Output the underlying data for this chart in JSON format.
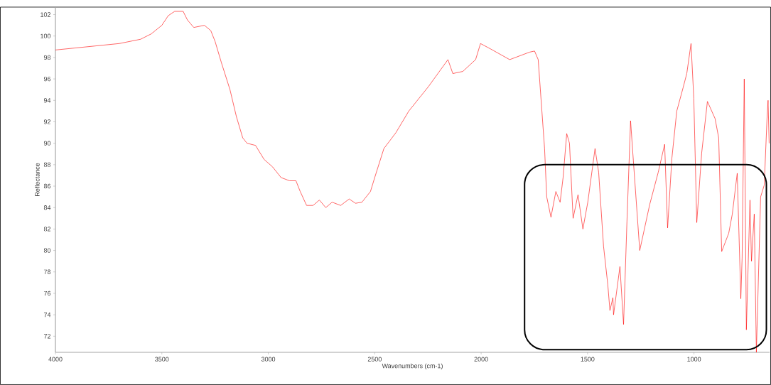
{
  "chart_data": {
    "type": "line",
    "xlabel": "Wavenumbers (cm-1)",
    "ylabel": "Reflectance",
    "xlim": [
      4000,
      645
    ],
    "ylim": [
      70.5,
      102.7
    ],
    "xticks": [
      4000,
      3500,
      3000,
      2500,
      2000,
      1500,
      1000
    ],
    "yticks": [
      72,
      74,
      76,
      78,
      80,
      82,
      84,
      86,
      88,
      90,
      92,
      94,
      96,
      98,
      100,
      102
    ],
    "grid": false,
    "marker": "none",
    "line_style": "solid",
    "series": [
      {
        "color": "#ff0000",
        "x": [
          4000,
          3900,
          3800,
          3700,
          3600,
          3550,
          3500,
          3470,
          3440,
          3400,
          3380,
          3350,
          3300,
          3270,
          3250,
          3220,
          3180,
          3150,
          3120,
          3100,
          3060,
          3020,
          2980,
          2940,
          2900,
          2870,
          2850,
          2820,
          2790,
          2760,
          2730,
          2700,
          2660,
          2620,
          2590,
          2560,
          2520,
          2500,
          2457,
          2400,
          2340,
          2247,
          2156,
          2133,
          2086,
          2026,
          2003,
          1956,
          1866,
          1772,
          1749,
          1732,
          1702,
          1692,
          1672,
          1649,
          1629,
          1615,
          1598,
          1585,
          1568,
          1545,
          1522,
          1499,
          1465,
          1448,
          1425,
          1405,
          1395,
          1381,
          1378,
          1348,
          1331,
          1315,
          1298,
          1285,
          1255,
          1208,
          1168,
          1138,
          1124,
          1104,
          1081,
          1051,
          1034,
          1014,
          1001,
          987,
          964,
          937,
          901,
          884,
          870,
          837,
          820,
          797,
          780,
          774,
          764,
          754,
          737,
          730,
          717,
          707,
          687,
          670,
          657,
          652,
          647
        ],
        "values": [
          98.7,
          98.9,
          99.1,
          99.3,
          99.7,
          100.2,
          101,
          101.9,
          102.3,
          102.3,
          101.5,
          100.8,
          101,
          100.5,
          99.5,
          97.5,
          95,
          92.5,
          90.5,
          90,
          89.8,
          88.5,
          87.8,
          86.8,
          86.5,
          86.5,
          85.5,
          84.2,
          84.2,
          84.7,
          84,
          84.5,
          84.2,
          84.8,
          84.4,
          84.5,
          85.5,
          86.8,
          89.5,
          91,
          93,
          95.3,
          97.8,
          96.5,
          96.7,
          97.8,
          99.3,
          98.8,
          97.8,
          98.5,
          98.6,
          97.8,
          89.5,
          85,
          83.1,
          85.5,
          84.5,
          86.8,
          90.9,
          90,
          83,
          85.2,
          82,
          84.5,
          89.5,
          87.3,
          80.4,
          76.8,
          74.4,
          75.6,
          74,
          78.5,
          73.1,
          82.7,
          92.1,
          88.4,
          80,
          84.3,
          87.3,
          89.9,
          82.1,
          88.6,
          93,
          95.2,
          96.5,
          99.3,
          94.2,
          82.6,
          89.1,
          93.9,
          92.3,
          90.5,
          79.9,
          81.6,
          83.4,
          87.2,
          75.5,
          79.3,
          96,
          72.6,
          84.7,
          79,
          83.4,
          70.5,
          85,
          86.1,
          92.3,
          94,
          90
        ]
      }
    ]
  }
}
